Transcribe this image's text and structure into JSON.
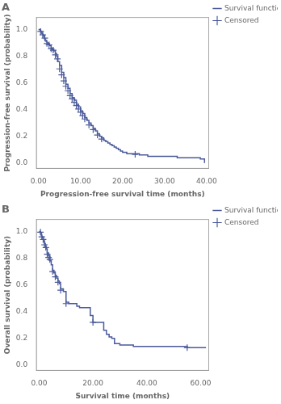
{
  "chart_data": [
    {
      "type": "line",
      "title": "A",
      "xlabel": "Progression-free survival time (months)",
      "ylabel": "Progression-free survival (probability)",
      "xlim": [
        -0.5,
        40.5
      ],
      "ylim": [
        -0.04,
        1.09
      ],
      "xticks": [
        {
          "value": 0,
          "label": "0.00"
        },
        {
          "value": 10,
          "label": "10.00"
        },
        {
          "value": 20,
          "label": "20.00"
        },
        {
          "value": 30,
          "label": "30.00"
        },
        {
          "value": 40,
          "label": "40.00"
        }
      ],
      "yticks": [
        {
          "value": 0.0,
          "label": "0.0"
        },
        0.2,
        0.4,
        0.6,
        0.8,
        {
          "value": 1.0,
          "label": "1.0"
        }
      ],
      "grid": false,
      "legend": "right",
      "series": [
        {
          "name": "Survival function",
          "type": "line",
          "line_style": "steps",
          "color": "#4a5a9a",
          "x": [
            0,
            0.2,
            0.4,
            0.6,
            0.8,
            1.0,
            1.2,
            1.4,
            1.6,
            1.8,
            2.0,
            2.3,
            2.6,
            3.0,
            3.3,
            3.6,
            4.0,
            4.3,
            4.6,
            5.0,
            5.5,
            6.0,
            6.5,
            7.0,
            7.5,
            8.0,
            8.5,
            9.0,
            9.5,
            10.0,
            10.5,
            11.0,
            11.5,
            12.0,
            12.5,
            13.0,
            13.5,
            14.0,
            14.5,
            15.0,
            15.5,
            16.0,
            16.5,
            17.0,
            17.5,
            18.0,
            18.5,
            19.0,
            19.5,
            20.0,
            21.0,
            22.0,
            23.0,
            24.0,
            25.0,
            26.0,
            27.0,
            28.0,
            29.0,
            30.0,
            33.0,
            36.0,
            38.5,
            39.5
          ],
          "values": [
            1.0,
            1.0,
            0.99,
            0.98,
            0.97,
            0.96,
            0.95,
            0.93,
            0.92,
            0.91,
            0.9,
            0.89,
            0.88,
            0.86,
            0.85,
            0.84,
            0.82,
            0.8,
            0.76,
            0.73,
            0.68,
            0.64,
            0.59,
            0.56,
            0.52,
            0.49,
            0.47,
            0.44,
            0.42,
            0.39,
            0.37,
            0.34,
            0.32,
            0.3,
            0.28,
            0.26,
            0.24,
            0.22,
            0.2,
            0.19,
            0.17,
            0.16,
            0.15,
            0.14,
            0.13,
            0.12,
            0.11,
            0.1,
            0.09,
            0.08,
            0.07,
            0.07,
            0.07,
            0.06,
            0.06,
            0.05,
            0.05,
            0.05,
            0.05,
            0.05,
            0.04,
            0.04,
            0.03,
            0.0
          ]
        },
        {
          "name": "Censored",
          "type": "scatter",
          "marker": "+",
          "color": "#4a5a9a",
          "x": [
            0.5,
            1.0,
            1.5,
            2.0,
            2.5,
            3.0,
            3.5,
            4.0,
            4.5,
            5.0,
            5.5,
            6.0,
            6.5,
            7.0,
            7.5,
            8.0,
            8.5,
            9.0,
            9.5,
            10.0,
            10.5,
            11.0,
            12.0,
            13.0,
            14.0,
            15.0,
            23.0
          ],
          "values": [
            0.985,
            0.96,
            0.935,
            0.895,
            0.885,
            0.855,
            0.845,
            0.81,
            0.78,
            0.705,
            0.66,
            0.615,
            0.575,
            0.54,
            0.505,
            0.48,
            0.455,
            0.43,
            0.405,
            0.38,
            0.355,
            0.33,
            0.285,
            0.25,
            0.21,
            0.18,
            0.065
          ]
        }
      ]
    },
    {
      "type": "line",
      "title": "B",
      "xlabel": "Survival time (months)",
      "ylabel": "Overall survival (probability)",
      "xlim": [
        -1.0,
        63
      ],
      "ylim": [
        -0.04,
        1.09
      ],
      "xticks": [
        {
          "value": 0,
          "label": "0.00"
        },
        {
          "value": 20,
          "label": "20.00"
        },
        {
          "value": 40,
          "label": "40.00"
        },
        {
          "value": 60,
          "label": "60.00"
        }
      ],
      "yticks": [
        {
          "value": 0.0,
          "label": "0.0"
        },
        0.2,
        0.4,
        0.6,
        0.8,
        {
          "value": 1.0,
          "label": "1.0"
        }
      ],
      "grid": false,
      "legend": "right",
      "series": [
        {
          "name": "Survival function",
          "type": "line",
          "line_style": "steps",
          "color": "#4a5a9a",
          "x": [
            0,
            0.3,
            0.5,
            0.8,
            1.0,
            1.3,
            1.6,
            2.0,
            2.3,
            2.6,
            3.0,
            3.5,
            4.0,
            4.5,
            5.0,
            5.5,
            6.0,
            6.5,
            7.0,
            7.5,
            8.0,
            9.0,
            10.0,
            11.0,
            12.0,
            13.0,
            14.0,
            15.0,
            16.0,
            17.0,
            18.0,
            19.0,
            20.0,
            21.0,
            22.0,
            23.0,
            24.0,
            25.0,
            26.0,
            27.0,
            28.0,
            30.0,
            35.0,
            40.0,
            50.0,
            55.0,
            60.0,
            62.0
          ],
          "values": [
            1.0,
            1.0,
            0.99,
            0.97,
            0.96,
            0.95,
            0.93,
            0.91,
            0.89,
            0.87,
            0.84,
            0.82,
            0.78,
            0.75,
            0.71,
            0.69,
            0.67,
            0.65,
            0.63,
            0.61,
            0.57,
            0.55,
            0.47,
            0.46,
            0.46,
            0.46,
            0.44,
            0.43,
            0.43,
            0.43,
            0.43,
            0.37,
            0.32,
            0.32,
            0.32,
            0.32,
            0.26,
            0.23,
            0.21,
            0.2,
            0.16,
            0.15,
            0.14,
            0.14,
            0.14,
            0.13,
            0.13,
            0.13
          ]
        },
        {
          "name": "Censored",
          "type": "scatter",
          "marker": "+",
          "color": "#4a5a9a",
          "x": [
            0.5,
            1.0,
            1.5,
            2.0,
            2.5,
            3.0,
            3.5,
            4.0,
            5.0,
            6.0,
            7.0,
            8.0,
            10.0,
            20.0,
            55.0
          ],
          "values": [
            0.995,
            0.96,
            0.94,
            0.9,
            0.88,
            0.83,
            0.805,
            0.79,
            0.7,
            0.66,
            0.62,
            0.56,
            0.46,
            0.32,
            0.13
          ]
        }
      ]
    }
  ]
}
